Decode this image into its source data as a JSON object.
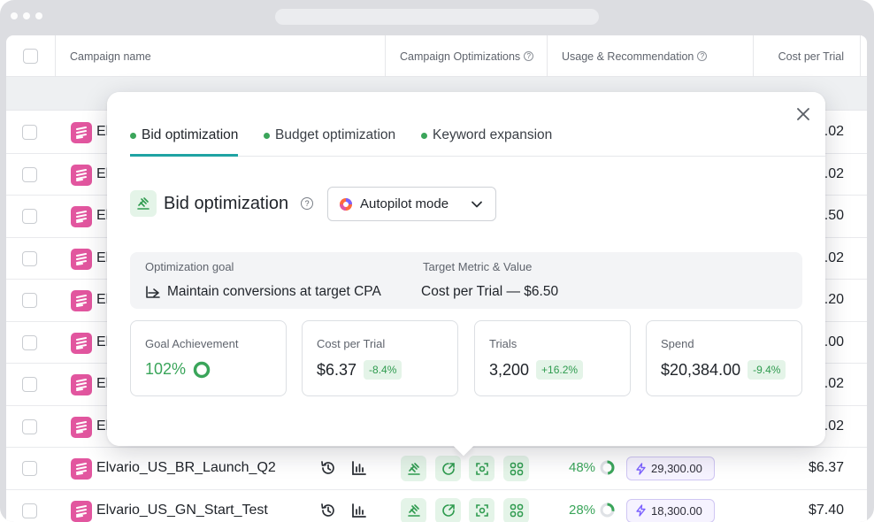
{
  "table": {
    "headers": {
      "campaign_name": "Campaign name",
      "campaign_optimizations": "Campaign Optimizations",
      "usage_recommendation": "Usage & Recommendation",
      "cost_per_trial": "Cost per Trial"
    },
    "rows": [
      {
        "name": "El",
        "cost": ".02"
      },
      {
        "name": "El",
        "cost": ".02"
      },
      {
        "name": "El",
        "cost": ".50"
      },
      {
        "name": "El",
        "cost": ".02"
      },
      {
        "name": "El",
        "cost": ".20"
      },
      {
        "name": "El",
        "cost": ".00"
      },
      {
        "name": "El",
        "cost": ".02"
      },
      {
        "name": "El",
        "cost": ".02"
      },
      {
        "name": "Elvario_US_BR_Launch_Q2",
        "usage_pct": "48%",
        "usage_fraction": 0.48,
        "recommendation": "29,300.00",
        "cost": "$6.37"
      },
      {
        "name": "Elvario_US_GN_Start_Test",
        "usage_pct": "28%",
        "usage_fraction": 0.28,
        "recommendation": "18,300.00",
        "cost": "$7.40"
      }
    ]
  },
  "popup": {
    "tabs": [
      {
        "label": "Bid optimization",
        "active": true
      },
      {
        "label": "Budget optimization",
        "active": false
      },
      {
        "label": "Keyword expansion",
        "active": false
      }
    ],
    "title": "Bid optimization",
    "mode": "Autopilot mode",
    "goal": {
      "goal_label": "Optimization goal",
      "goal_value": "Maintain conversions at target CPA",
      "target_label": "Target Metric & Value",
      "target_value": "Cost per Trial — $6.50"
    },
    "metrics": [
      {
        "label": "Goal Achievement",
        "value": "102%",
        "delta": ""
      },
      {
        "label": "Cost per Trial",
        "value": "$6.37",
        "delta": "-8.4%"
      },
      {
        "label": "Trials",
        "value": "3,200",
        "delta": "+16.2%"
      },
      {
        "label": "Spend",
        "value": "$20,384.00",
        "delta": "-9.4%"
      }
    ]
  },
  "colors": {
    "brand_pink": "#e2569f",
    "accent_teal": "#1fa3a3",
    "success_green": "#3aa55a",
    "recommend_purple": "#7b61ff"
  },
  "icons": {
    "close": "close-icon",
    "info": "info-icon",
    "history": "history-icon",
    "bars": "bar-chart-icon",
    "bid": "gavel-icon",
    "budget": "budget-icon",
    "keyword": "keyword-icon",
    "expand": "grid-icon",
    "bolt": "bolt-icon",
    "autopilot": "autopilot-icon",
    "goal_arrow": "goal-arrow-icon"
  }
}
